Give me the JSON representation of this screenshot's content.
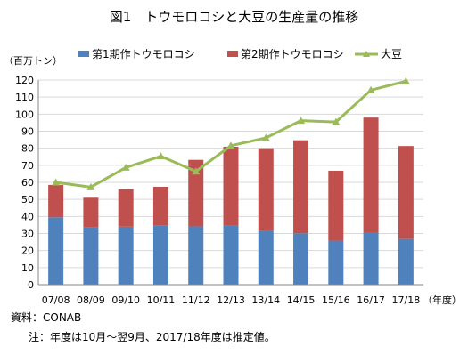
{
  "title": "図1　トウモロコシと大豆の生産量の推移",
  "source": "資料：CONAB",
  "note": "注：年度は10月～翌9月、2017/18年度は推定値。",
  "colors": {
    "first": "#4f81bd",
    "second": "#c0504d",
    "soy": "#9bbb59",
    "grid": "#d9d9d9",
    "axis": "#868686"
  },
  "chart_data": {
    "type": "bar",
    "stacked": true,
    "ylabel": "（百万トン）",
    "xlabel": "（年度）",
    "ylim": [
      0,
      120
    ],
    "yticks": [
      0,
      10,
      20,
      30,
      40,
      50,
      60,
      70,
      80,
      90,
      100,
      110,
      120
    ],
    "categories": [
      "07/08",
      "08/09",
      "09/10",
      "10/11",
      "11/12",
      "12/13",
      "13/14",
      "14/15",
      "15/16",
      "16/17",
      "17/18"
    ],
    "series": [
      {
        "name": "第1期作トウモロコシ",
        "type": "bar",
        "values": [
          39.5,
          33.5,
          34,
          34.9,
          34.2,
          34.5,
          31.6,
          30.1,
          25.8,
          30.5,
          26.8
        ]
      },
      {
        "name": "第2期作トウモロコシ",
        "type": "bar",
        "values": [
          19,
          17.5,
          22,
          22.5,
          39,
          46.4,
          48.4,
          54.6,
          41,
          67.5,
          54.5
        ]
      },
      {
        "name": "大豆",
        "type": "line",
        "values": [
          60,
          57.2,
          68.7,
          75.3,
          66.4,
          81.5,
          86.1,
          96.2,
          95.4,
          114.1,
          119.3
        ]
      }
    ],
    "grid": true,
    "legend_position": "top"
  }
}
